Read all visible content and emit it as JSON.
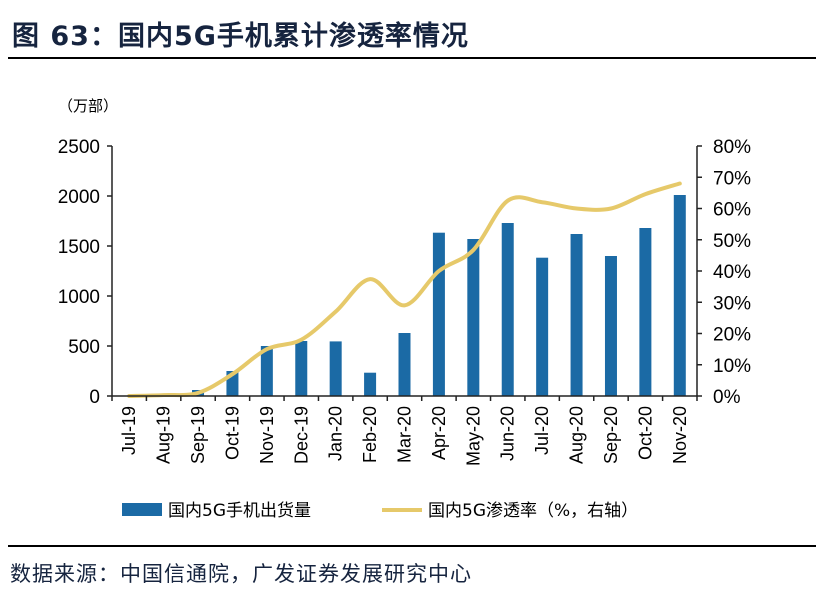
{
  "figure_title": "图 63：国内5G手机累计渗透率情况",
  "source": "数据来源：中国信通院，广发证券发展研究中心",
  "chart_data": {
    "type": "bar+line",
    "left_unit": "（万部）",
    "categories": [
      "Jul-19",
      "Aug-19",
      "Sep-19",
      "Oct-19",
      "Nov-19",
      "Dec-19",
      "Jan-20",
      "Feb-20",
      "Mar-20",
      "Apr-20",
      "May-20",
      "Jun-20",
      "Jul-20",
      "Aug-20",
      "Sep-20",
      "Oct-20",
      "Nov-20"
    ],
    "series": [
      {
        "name": "国内5G手机出货量",
        "type": "bar",
        "axis": "left",
        "color": "#1b6aa5",
        "values": [
          0,
          3,
          60,
          250,
          500,
          550,
          546,
          233,
          630,
          1633,
          1570,
          1730,
          1383,
          1620,
          1400,
          1680,
          2010
        ]
      },
      {
        "name": "国内5G渗透率（%，右轴）",
        "type": "line",
        "axis": "right",
        "color": "#e6c96a",
        "values": [
          0,
          0.3,
          1,
          7,
          15,
          18,
          27,
          37.4,
          29,
          40,
          46.7,
          62.5,
          62,
          60,
          60,
          64.6,
          68
        ]
      }
    ],
    "left_axis": {
      "range": [
        0,
        2500
      ],
      "ticks": [
        "0",
        "500",
        "1000",
        "1500",
        "2000",
        "2500"
      ]
    },
    "right_axis": {
      "range": [
        0,
        80
      ],
      "ticks": [
        "0%",
        "10%",
        "20%",
        "30%",
        "40%",
        "50%",
        "60%",
        "70%",
        "80%"
      ]
    },
    "grid": false,
    "legend": "bottom"
  }
}
